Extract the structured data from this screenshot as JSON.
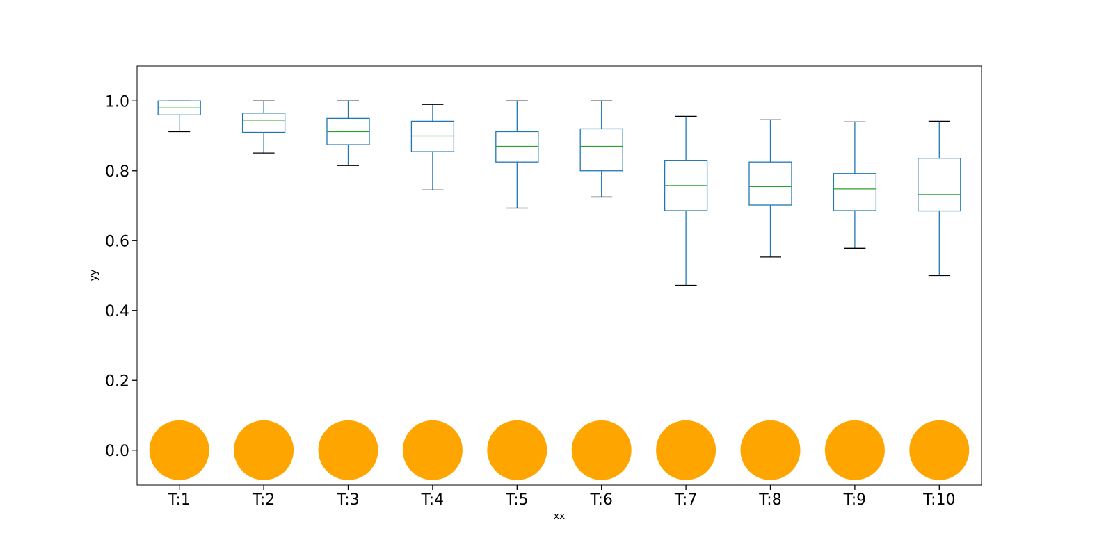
{
  "chart_data": {
    "type": "box",
    "xlabel": "xx",
    "ylabel": "yy",
    "ylim": [
      -0.1,
      1.1
    ],
    "yticks": [
      0.0,
      0.2,
      0.4,
      0.6,
      0.8,
      1.0
    ],
    "ytick_labels": [
      "0.0",
      "0.2",
      "0.4",
      "0.6",
      "0.8",
      "1.0"
    ],
    "grid": false,
    "categories": [
      "T:1",
      "T:2",
      "T:3",
      "T:4",
      "T:5",
      "T:6",
      "T:7",
      "T:8",
      "T:9",
      "T:10"
    ],
    "boxes": [
      {
        "whisker_low": 0.912,
        "q1": 0.96,
        "median": 0.98,
        "q3": 1.0,
        "whisker_high": 1.0
      },
      {
        "whisker_low": 0.851,
        "q1": 0.91,
        "median": 0.945,
        "q3": 0.965,
        "whisker_high": 1.0
      },
      {
        "whisker_low": 0.815,
        "q1": 0.875,
        "median": 0.912,
        "q3": 0.95,
        "whisker_high": 1.0
      },
      {
        "whisker_low": 0.745,
        "q1": 0.855,
        "median": 0.9,
        "q3": 0.942,
        "whisker_high": 0.99
      },
      {
        "whisker_low": 0.693,
        "q1": 0.825,
        "median": 0.87,
        "q3": 0.912,
        "whisker_high": 1.0
      },
      {
        "whisker_low": 0.725,
        "q1": 0.8,
        "median": 0.87,
        "q3": 0.92,
        "whisker_high": 1.0
      },
      {
        "whisker_low": 0.472,
        "q1": 0.686,
        "median": 0.758,
        "q3": 0.83,
        "whisker_high": 0.956
      },
      {
        "whisker_low": 0.553,
        "q1": 0.702,
        "median": 0.755,
        "q3": 0.825,
        "whisker_high": 0.946
      },
      {
        "whisker_low": 0.578,
        "q1": 0.686,
        "median": 0.748,
        "q3": 0.792,
        "whisker_high": 0.94
      },
      {
        "whisker_low": 0.5,
        "q1": 0.685,
        "median": 0.732,
        "q3": 0.836,
        "whisker_high": 0.942
      }
    ],
    "points": {
      "y": [
        0.0,
        0.0,
        0.0,
        0.0,
        0.0,
        0.0,
        0.0,
        0.0,
        0.0,
        0.0
      ],
      "color": "#ffa500"
    },
    "colors": {
      "box": "#1f77b4",
      "median": "#2ca02c",
      "cap": "#000000"
    }
  }
}
